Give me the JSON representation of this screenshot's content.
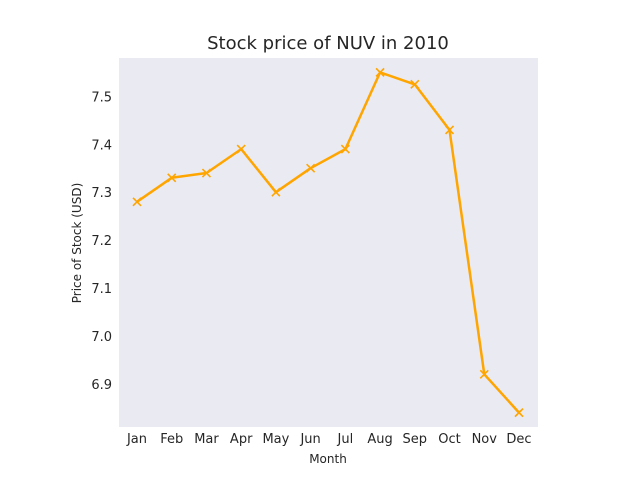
{
  "colors": {
    "plot_background": "#EAEAF2",
    "series_line": "#FFA500",
    "text": "#262626"
  },
  "chart_data": {
    "type": "line",
    "title": "Stock price of NUV in 2010",
    "xlabel": "Month",
    "ylabel": "Price of Stock (USD)",
    "categories": [
      "Jan",
      "Feb",
      "Mar",
      "Apr",
      "May",
      "Jun",
      "Jul",
      "Aug",
      "Sep",
      "Oct",
      "Nov",
      "Dec"
    ],
    "series": [
      {
        "values": [
          7.28,
          7.33,
          7.34,
          7.39,
          7.3,
          7.35,
          7.39,
          7.55,
          7.525,
          7.43,
          6.92,
          6.84
        ]
      }
    ],
    "marker": "x",
    "ylim": [
      6.81,
      7.58
    ],
    "yticks": [
      "6.9",
      "7.0",
      "7.1",
      "7.2",
      "7.3",
      "7.4",
      "7.5"
    ],
    "grid": false,
    "legend": "none"
  }
}
